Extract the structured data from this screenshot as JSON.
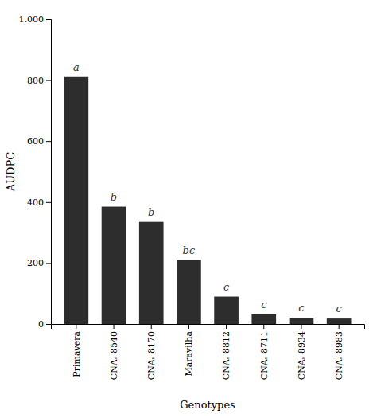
{
  "chart_data": {
    "type": "bar",
    "categories": [
      "Primavera",
      "CNAₛ 8540",
      "CNAₛ 8170",
      "Maravilha",
      "CNAₛ 8812",
      "CNAₛ 8711",
      "CNAₛ 8934",
      "CNAₛ 8983"
    ],
    "values": [
      810,
      385,
      335,
      210,
      90,
      32,
      20,
      18
    ],
    "annotations": [
      "a",
      "b",
      "b",
      "bc",
      "c",
      "c",
      "c",
      "c"
    ],
    "color": "#2d2d2d",
    "x_label": "Genotypes",
    "y_label": "AUDPC",
    "ylim": [
      0,
      1000
    ],
    "yticks": [
      0,
      200,
      400,
      600,
      800,
      {
        "value": 1000,
        "label": "1.000"
      }
    ],
    "grid": false
  }
}
